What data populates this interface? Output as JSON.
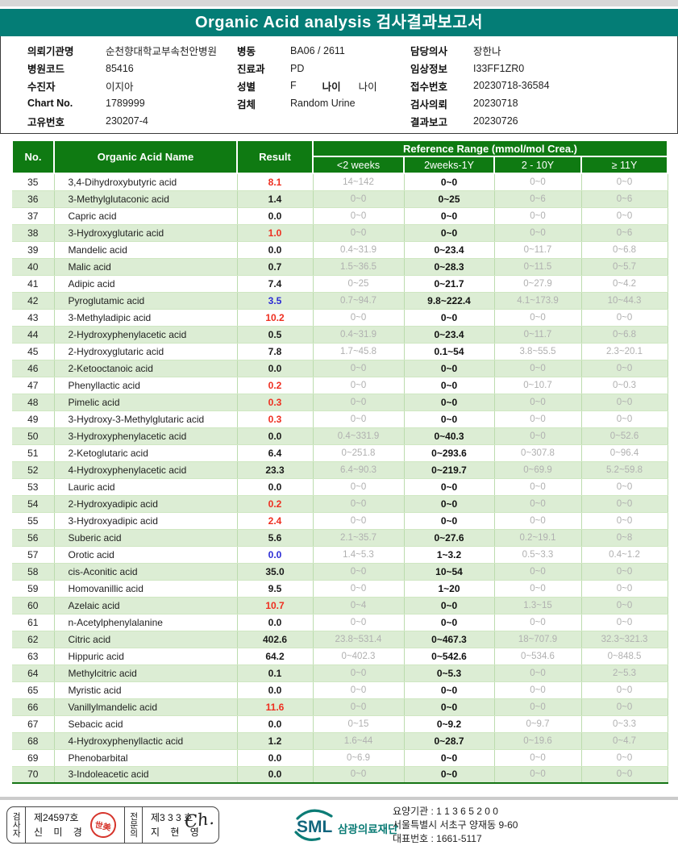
{
  "title": "Organic Acid analysis 검사결과보고서",
  "colors": {
    "title_teal": "#047d76",
    "table_header_green": "#0f7a12",
    "row_alt_green": "#dcedd4",
    "ref_gray": "#b0b0b0",
    "result_red": "#ee2e20",
    "result_blue": "#2b2bd5",
    "logo_teal": "#0c7c76",
    "seal_red": "#d6352c"
  },
  "patient_info": {
    "col1": [
      {
        "label": "의뢰기관명",
        "value": "순천향대학교부속천안병원"
      },
      {
        "label": "병원코드",
        "value": "85416"
      },
      {
        "label": "수진자",
        "value": "이지아"
      },
      {
        "label": "Chart No.",
        "value": "1789999"
      },
      {
        "label": "고유번호",
        "value": "230207-4"
      }
    ],
    "col2": [
      {
        "label": "병동",
        "value": "BA06 / 2611"
      },
      {
        "label": "진료과",
        "value": "PD"
      },
      {
        "label": "성별",
        "value": "F"
      },
      {
        "label": "검체",
        "value": "Random Urine"
      }
    ],
    "age_label": "나이",
    "age_value": "나이",
    "col3": [
      {
        "label": "담당의사",
        "value": "장한나"
      },
      {
        "label": "임상정보",
        "value": "I33FF1ZR0"
      },
      {
        "label": "접수번호",
        "value": "20230718-36584"
      },
      {
        "label": "검사의뢰",
        "value": "20230718"
      },
      {
        "label": "결과보고",
        "value": "20230726"
      }
    ]
  },
  "table": {
    "headers": {
      "no": "No.",
      "name": "Organic Acid Name",
      "result": "Result",
      "ref_title": "Reference Range (mmol/mol Crea.)",
      "ref_cols": [
        "<2 weeks",
        "2weeks-1Y",
        "2 - 10Y",
        "≥ 11Y"
      ]
    },
    "active_ref_index": 1,
    "rows": [
      {
        "no": "35",
        "name": "3,4-Dihydroxybutyric acid",
        "result": "8.1",
        "flag": "red",
        "refs": [
          "14~142",
          "0~0",
          "0~0",
          "0~0"
        ]
      },
      {
        "no": "36",
        "name": "3-Methylglutaconic acid",
        "result": "1.4",
        "flag": "none",
        "refs": [
          "0~0",
          "0~25",
          "0~6",
          "0~6"
        ]
      },
      {
        "no": "37",
        "name": "Capric acid",
        "result": "0.0",
        "flag": "none",
        "refs": [
          "0~0",
          "0~0",
          "0~0",
          "0~0"
        ]
      },
      {
        "no": "38",
        "name": "3-Hydroxyglutaric acid",
        "result": "1.0",
        "flag": "red",
        "refs": [
          "0~0",
          "0~0",
          "0~0",
          "0~6"
        ]
      },
      {
        "no": "39",
        "name": "Mandelic acid",
        "result": "0.0",
        "flag": "none",
        "refs": [
          "0.4~31.9",
          "0~23.4",
          "0~11.7",
          "0~6.8"
        ]
      },
      {
        "no": "40",
        "name": "Malic acid",
        "result": "0.7",
        "flag": "none",
        "refs": [
          "1.5~36.5",
          "0~28.3",
          "0~11.5",
          "0~5.7"
        ]
      },
      {
        "no": "41",
        "name": "Adipic acid",
        "result": "7.4",
        "flag": "none",
        "refs": [
          "0~25",
          "0~21.7",
          "0~27.9",
          "0~4.2"
        ]
      },
      {
        "no": "42",
        "name": "Pyroglutamic acid",
        "result": "3.5",
        "flag": "blue",
        "refs": [
          "0.7~94.7",
          "9.8~222.4",
          "4.1~173.9",
          "10~44.3"
        ]
      },
      {
        "no": "43",
        "name": "3-Methyladipic acid",
        "result": "10.2",
        "flag": "red",
        "refs": [
          "0~0",
          "0~0",
          "0~0",
          "0~0"
        ]
      },
      {
        "no": "44",
        "name": "2-Hydroxyphenylacetic acid",
        "result": "0.5",
        "flag": "none",
        "refs": [
          "0.4~31.9",
          "0~23.4",
          "0~11.7",
          "0~6.8"
        ]
      },
      {
        "no": "45",
        "name": "2-Hydroxyglutaric acid",
        "result": "7.8",
        "flag": "none",
        "refs": [
          "1.7~45.8",
          "0.1~54",
          "3.8~55.5",
          "2.3~20.1"
        ]
      },
      {
        "no": "46",
        "name": "2-Ketooctanoic acid",
        "result": "0.0",
        "flag": "none",
        "refs": [
          "0~0",
          "0~0",
          "0~0",
          "0~0"
        ]
      },
      {
        "no": "47",
        "name": "Phenyllactic acid",
        "result": "0.2",
        "flag": "red",
        "refs": [
          "0~0",
          "0~0",
          "0~10.7",
          "0~0.3"
        ]
      },
      {
        "no": "48",
        "name": "Pimelic acid",
        "result": "0.3",
        "flag": "red",
        "refs": [
          "0~0",
          "0~0",
          "0~0",
          "0~0"
        ]
      },
      {
        "no": "49",
        "name": "3-Hydroxy-3-Methylglutaric acid",
        "result": "0.3",
        "flag": "red",
        "refs": [
          "0~0",
          "0~0",
          "0~0",
          "0~0"
        ]
      },
      {
        "no": "50",
        "name": "3-Hydroxyphenylacetic acid",
        "result": "0.0",
        "flag": "none",
        "refs": [
          "0.4~331.9",
          "0~40.3",
          "0~0",
          "0~52.6"
        ]
      },
      {
        "no": "51",
        "name": "2-Ketoglutaric acid",
        "result": "6.4",
        "flag": "none",
        "refs": [
          "0~251.8",
          "0~293.6",
          "0~307.8",
          "0~96.4"
        ]
      },
      {
        "no": "52",
        "name": "4-Hydroxyphenylacetic acid",
        "result": "23.3",
        "flag": "none",
        "refs": [
          "6.4~90.3",
          "0~219.7",
          "0~69.9",
          "5.2~59.8"
        ]
      },
      {
        "no": "53",
        "name": "Lauric acid",
        "result": "0.0",
        "flag": "none",
        "refs": [
          "0~0",
          "0~0",
          "0~0",
          "0~0"
        ]
      },
      {
        "no": "54",
        "name": "2-Hydroxyadipic acid",
        "result": "0.2",
        "flag": "red",
        "refs": [
          "0~0",
          "0~0",
          "0~0",
          "0~0"
        ]
      },
      {
        "no": "55",
        "name": "3-Hydroxyadipic acid",
        "result": "2.4",
        "flag": "red",
        "refs": [
          "0~0",
          "0~0",
          "0~0",
          "0~0"
        ]
      },
      {
        "no": "56",
        "name": "Suberic acid",
        "result": "5.6",
        "flag": "none",
        "refs": [
          "2.1~35.7",
          "0~27.6",
          "0.2~19.1",
          "0~8"
        ]
      },
      {
        "no": "57",
        "name": "Orotic acid",
        "result": "0.0",
        "flag": "blue",
        "refs": [
          "1.4~5.3",
          "1~3.2",
          "0.5~3.3",
          "0.4~1.2"
        ]
      },
      {
        "no": "58",
        "name": "cis-Aconitic acid",
        "result": "35.0",
        "flag": "none",
        "refs": [
          "0~0",
          "10~54",
          "0~0",
          "0~0"
        ]
      },
      {
        "no": "59",
        "name": "Homovanillic acid",
        "result": "9.5",
        "flag": "none",
        "refs": [
          "0~0",
          "1~20",
          "0~0",
          "0~0"
        ]
      },
      {
        "no": "60",
        "name": "Azelaic acid",
        "result": "10.7",
        "flag": "red",
        "refs": [
          "0~4",
          "0~0",
          "1.3~15",
          "0~0"
        ]
      },
      {
        "no": "61",
        "name": "n-Acetylphenylalanine",
        "result": "0.0",
        "flag": "none",
        "refs": [
          "0~0",
          "0~0",
          "0~0",
          "0~0"
        ]
      },
      {
        "no": "62",
        "name": "Citric acid",
        "result": "402.6",
        "flag": "none",
        "refs": [
          "23.8~531.4",
          "0~467.3",
          "18~707.9",
          "32.3~321.3"
        ]
      },
      {
        "no": "63",
        "name": "Hippuric acid",
        "result": "64.2",
        "flag": "none",
        "refs": [
          "0~402.3",
          "0~542.6",
          "0~534.6",
          "0~848.5"
        ]
      },
      {
        "no": "64",
        "name": "Methylcitric acid",
        "result": "0.1",
        "flag": "none",
        "refs": [
          "0~0",
          "0~5.3",
          "0~0",
          "2~5.3"
        ]
      },
      {
        "no": "65",
        "name": "Myristic acid",
        "result": "0.0",
        "flag": "none",
        "refs": [
          "0~0",
          "0~0",
          "0~0",
          "0~0"
        ]
      },
      {
        "no": "66",
        "name": "Vanillylmandelic acid",
        "result": "11.6",
        "flag": "red",
        "refs": [
          "0~0",
          "0~0",
          "0~0",
          "0~0"
        ]
      },
      {
        "no": "67",
        "name": "Sebacic acid",
        "result": "0.0",
        "flag": "none",
        "refs": [
          "0~15",
          "0~9.2",
          "0~9.7",
          "0~3.3"
        ]
      },
      {
        "no": "68",
        "name": "4-Hydroxyphenyllactic acid",
        "result": "1.2",
        "flag": "none",
        "refs": [
          "1.6~44",
          "0~28.7",
          "0~19.6",
          "0~4.7"
        ]
      },
      {
        "no": "69",
        "name": "Phenobarbital",
        "result": "0.0",
        "flag": "none",
        "refs": [
          "0~6.9",
          "0~0",
          "0~0",
          "0~0"
        ]
      },
      {
        "no": "70",
        "name": "3-Indoleacetic acid",
        "result": "0.0",
        "flag": "none",
        "refs": [
          "0~0",
          "0~0",
          "0~0",
          "0~0"
        ]
      }
    ]
  },
  "footer": {
    "inspector": {
      "role": "검사자",
      "cert_no": "제24597호",
      "name": "신 미 경",
      "seal_text": "世美"
    },
    "specialist": {
      "role": "전문의",
      "cert_no": "제3 3 3 호",
      "name": "지 현 영",
      "signature": "Ch."
    },
    "logo_text": "SML",
    "org_name": "삼광의료재단",
    "org_lines": [
      "요양기관 : 1 1 3 6 5 2 0 0",
      "서울특별시 서초구 양재동 9-60",
      "대표번호 : 1661-5117"
    ]
  }
}
